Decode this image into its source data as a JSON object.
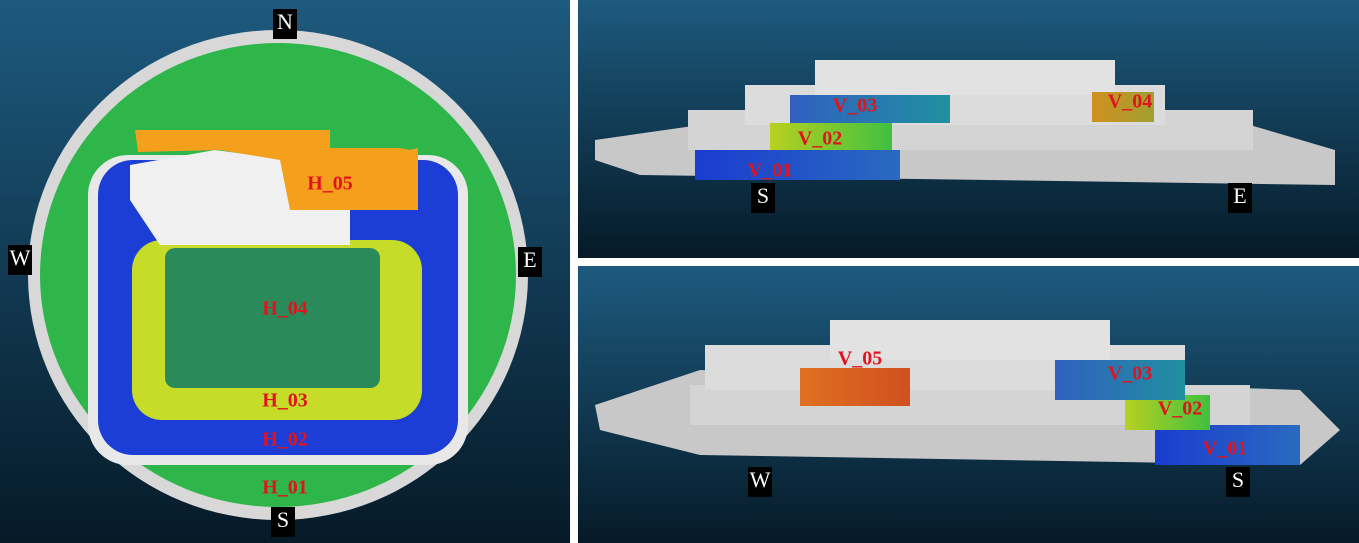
{
  "plan_view": {
    "north": "N",
    "west": "W",
    "east": "E",
    "south": "S",
    "layers": [
      "H_05",
      "H_04",
      "H_03",
      "H_02",
      "H_01"
    ]
  },
  "south_east_view": {
    "south": "S",
    "east": "E",
    "layers": [
      "V_03",
      "V_04",
      "V_02",
      "V_01"
    ]
  },
  "west_south_view": {
    "west": "W",
    "south": "S",
    "layers": [
      "V_05",
      "V_03",
      "V_02",
      "V_01"
    ]
  }
}
